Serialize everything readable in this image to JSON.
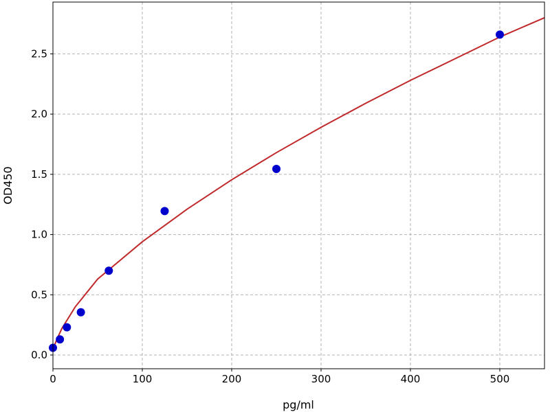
{
  "chart_data": {
    "type": "scatter",
    "title": "",
    "xlabel": "pg/ml",
    "ylabel": "OD450",
    "xlim": [
      0,
      550
    ],
    "ylim": [
      -0.114,
      2.93
    ],
    "grid": true,
    "x_ticks": [
      "0",
      "100",
      "200",
      "300",
      "400",
      "500"
    ],
    "y_ticks": [
      "0.0",
      "0.5",
      "1.0",
      "1.5",
      "2.0",
      "2.5"
    ],
    "points": {
      "color": "#0000cc",
      "x": [
        0,
        7.8,
        15.6,
        31.25,
        62.5,
        125,
        250,
        500
      ],
      "y": [
        0.06,
        0.13,
        0.23,
        0.355,
        0.7,
        1.195,
        1.545,
        2.66
      ]
    },
    "fit_curve": {
      "color": "#c0282a",
      "x": [
        0,
        5,
        10,
        25,
        50,
        100,
        150,
        200,
        250,
        300,
        350,
        400,
        450,
        500,
        550
      ],
      "y": [
        0.05,
        0.14,
        0.22,
        0.4,
        0.63,
        0.94,
        1.21,
        1.455,
        1.68,
        1.89,
        2.09,
        2.28,
        2.46,
        2.64,
        2.8
      ]
    }
  }
}
